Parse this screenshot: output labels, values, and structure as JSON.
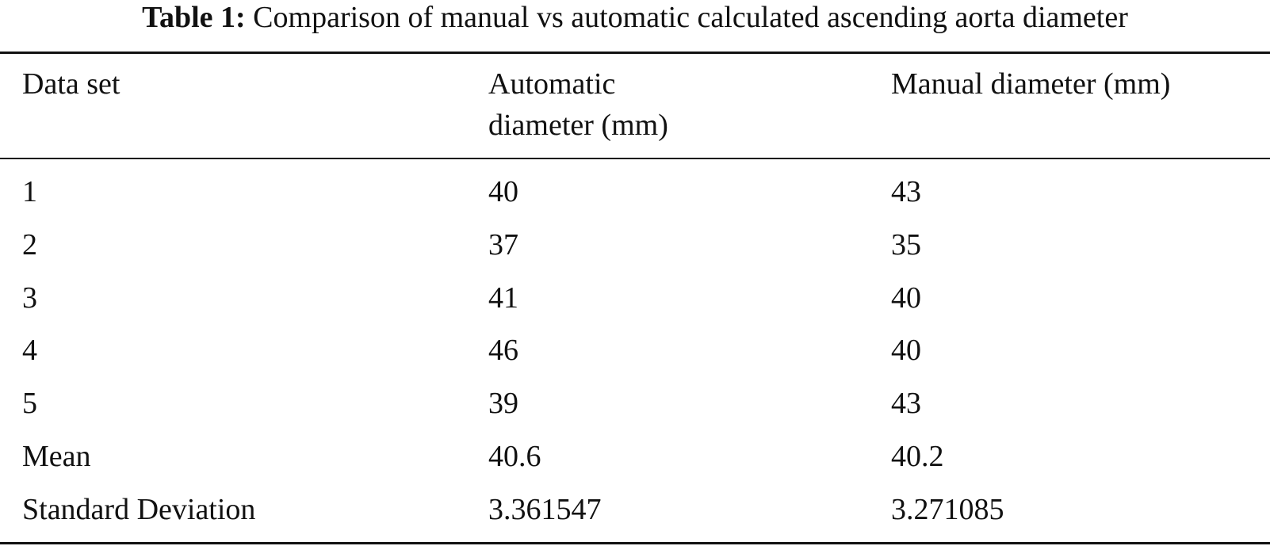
{
  "caption": {
    "label": "Table 1:",
    "text": "Comparison of manual vs automatic calculated ascending aorta diameter"
  },
  "table": {
    "headers": [
      "Data set",
      "Automatic diameter (mm)",
      "Manual diameter (mm)"
    ],
    "rows": [
      [
        "1",
        "40",
        "43"
      ],
      [
        "2",
        "37",
        "35"
      ],
      [
        "3",
        "41",
        "40"
      ],
      [
        "4",
        "46",
        "40"
      ],
      [
        "5",
        "39",
        "43"
      ],
      [
        "Mean",
        "40.6",
        "40.2"
      ],
      [
        "Standard Deviation",
        "3.361547",
        "3.271085"
      ]
    ]
  }
}
